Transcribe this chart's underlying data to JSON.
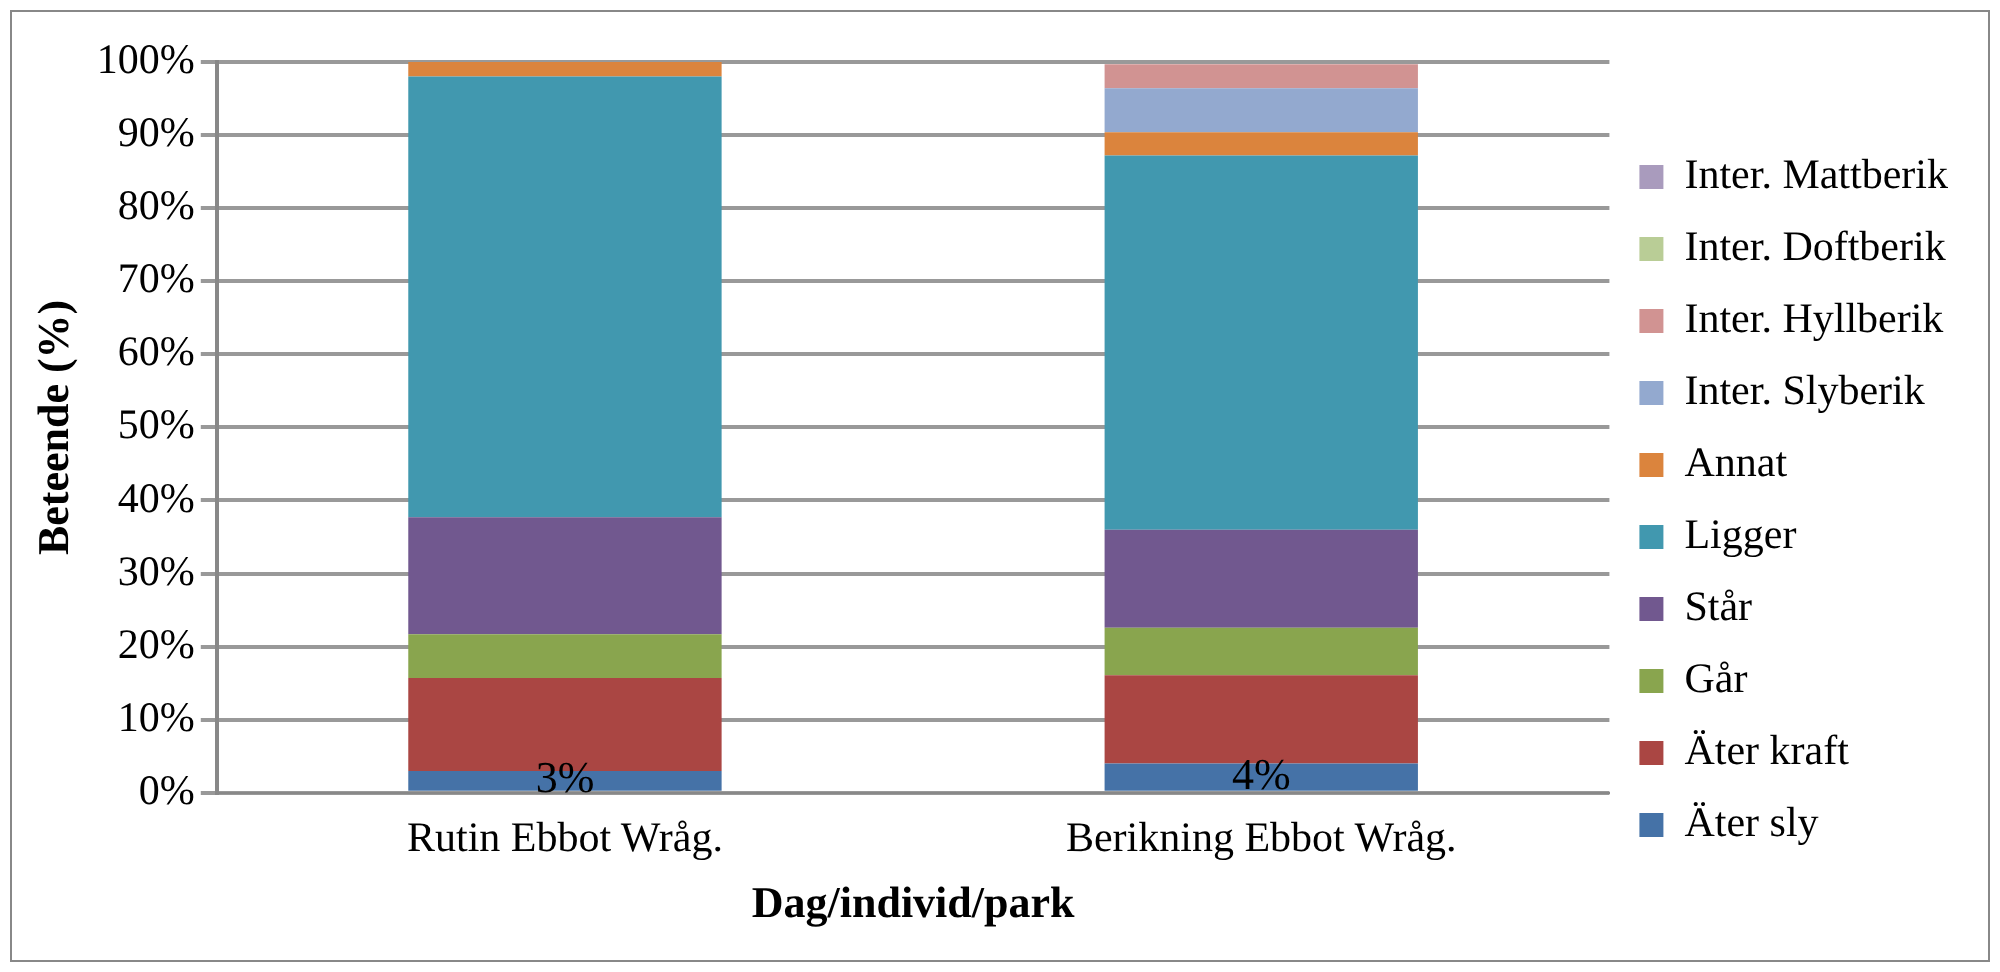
{
  "chart_data": {
    "type": "bar",
    "stacked": true,
    "xlabel": "Dag/individ/park",
    "ylabel": "Beteende (%)",
    "categories": [
      "Rutin Ebbot Wråg.",
      "Berikning Ebbot Wråg."
    ],
    "ylim": [
      0,
      100
    ],
    "yticks": [
      {
        "value": 0,
        "label": "0%"
      },
      {
        "value": 10,
        "label": "10%"
      },
      {
        "value": 20,
        "label": "20%"
      },
      {
        "value": 30,
        "label": "30%"
      },
      {
        "value": 40,
        "label": "40%"
      },
      {
        "value": 50,
        "label": "50%"
      },
      {
        "value": 60,
        "label": "60%"
      },
      {
        "value": 70,
        "label": "70%"
      },
      {
        "value": 80,
        "label": "80%"
      },
      {
        "value": 90,
        "label": "90%"
      },
      {
        "value": 100,
        "label": "100%"
      }
    ],
    "grid": "y",
    "legend": "right",
    "series": [
      {
        "name": "Äter sly",
        "color": "#4572a7",
        "values": [
          3,
          4
        ],
        "value_labels": [
          "3%",
          "4%"
        ]
      },
      {
        "name": "Äter kraft",
        "color": "#aa4643",
        "values": [
          12.7,
          12.1
        ]
      },
      {
        "name": "Går",
        "color": "#89a54e",
        "values": [
          6,
          6.5
        ]
      },
      {
        "name": "Står",
        "color": "#71588f",
        "values": [
          16,
          13.4
        ]
      },
      {
        "name": "Ligger",
        "color": "#4198af",
        "values": [
          60.3,
          51.2
        ]
      },
      {
        "name": "Annat",
        "color": "#db843d",
        "values": [
          2,
          3.2
        ]
      },
      {
        "name": "Inter. Slyberik",
        "color": "#93a9cf",
        "values": [
          0,
          6
        ]
      },
      {
        "name": "Inter. Hyllberik",
        "color": "#d19392",
        "values": [
          0,
          3.3
        ]
      },
      {
        "name": "Inter. Doftberik",
        "color": "#b9cd96",
        "values": [
          0,
          0
        ]
      },
      {
        "name": "Inter. Mattberik",
        "color": "#a99bbd",
        "values": [
          0,
          0
        ]
      }
    ]
  }
}
